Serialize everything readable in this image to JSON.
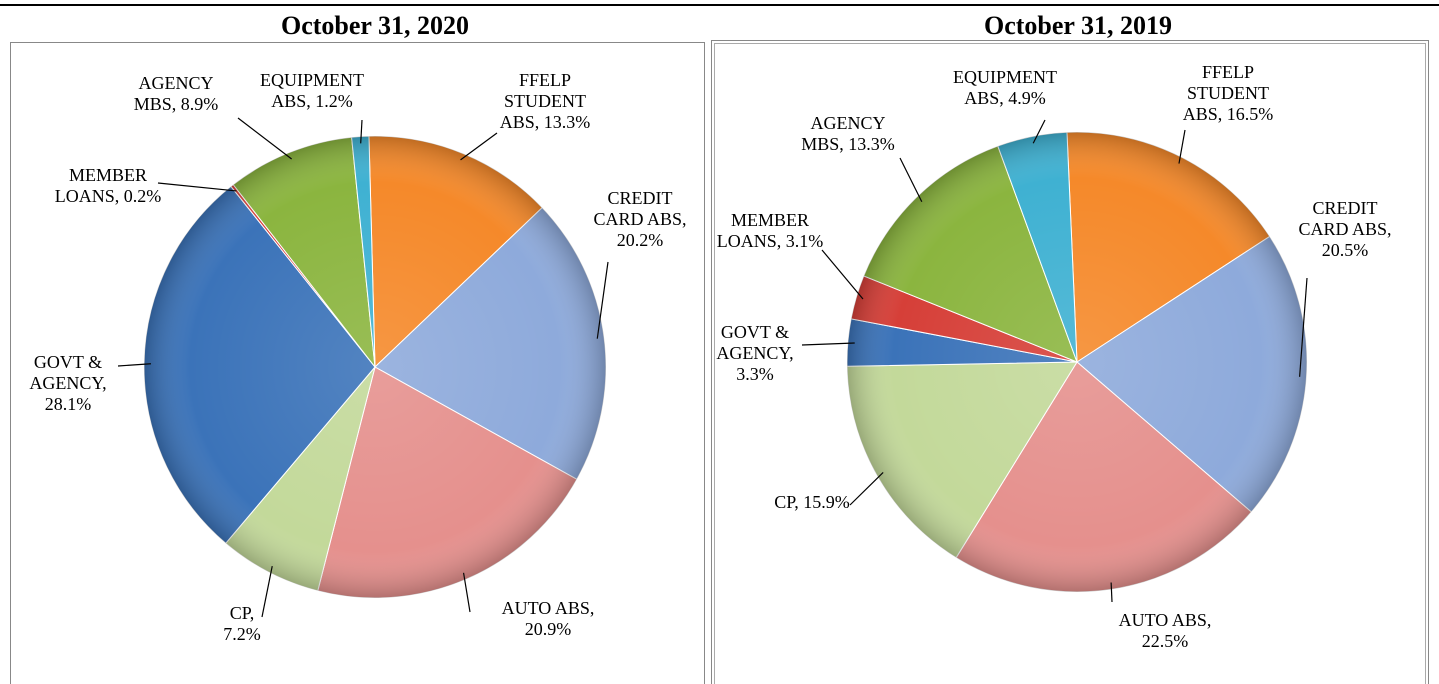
{
  "chart_data": [
    {
      "type": "pie",
      "title": "October 31, 2020",
      "categories": [
        "FFELP STUDENT ABS",
        "CREDIT CARD ABS",
        "AUTO ABS",
        "CP",
        "GOVT & AGENCY",
        "MEMBER LOANS",
        "AGENCY MBS",
        "EQUIPMENT ABS"
      ],
      "values": [
        13.3,
        20.2,
        20.9,
        7.2,
        28.1,
        0.2,
        8.9,
        1.2
      ],
      "value_labels": [
        "13.3%",
        "20.2%",
        "20.9%",
        "7.2%",
        "28.1%",
        "0.2%",
        "8.9%",
        "1.2%"
      ],
      "colors": [
        "#f5892a",
        "#8eaadb",
        "#e5908d",
        "#c3d99a",
        "#3b73b9",
        "#d63f38",
        "#8bb53f",
        "#3fb1d2"
      ]
    },
    {
      "type": "pie",
      "title": "October 31, 2019",
      "categories": [
        "FFELP STUDENT ABS",
        "CREDIT CARD ABS",
        "AUTO ABS",
        "CP",
        "GOVT & AGENCY",
        "MEMBER LOANS",
        "AGENCY MBS",
        "EQUIPMENT ABS"
      ],
      "values": [
        16.5,
        20.5,
        22.5,
        15.9,
        3.3,
        3.1,
        13.3,
        4.9
      ],
      "value_labels": [
        "16.5%",
        "20.5%",
        "22.5%",
        "15.9%",
        "3.3%",
        "3.1%",
        "13.3%",
        "4.9%"
      ],
      "colors": [
        "#f5892a",
        "#8eaadb",
        "#e5908d",
        "#c3d99a",
        "#3b73b9",
        "#d63f38",
        "#8bb53f",
        "#3fb1d2"
      ]
    }
  ]
}
